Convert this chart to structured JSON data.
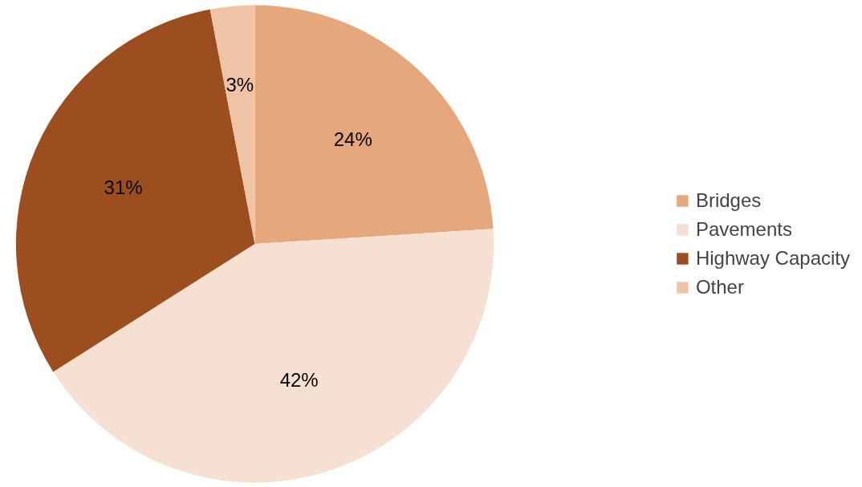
{
  "chart_data": {
    "type": "pie",
    "categories": [
      "Bridges",
      "Pavements",
      "Highway Capacity",
      "Other"
    ],
    "values": [
      24,
      42,
      31,
      3
    ],
    "colors": [
      "#e6a77d",
      "#f6e0d2",
      "#9c4e1e",
      "#efc3a6"
    ],
    "value_labels": [
      "24%",
      "42%",
      "31%",
      "3%"
    ],
    "legend": "right"
  }
}
